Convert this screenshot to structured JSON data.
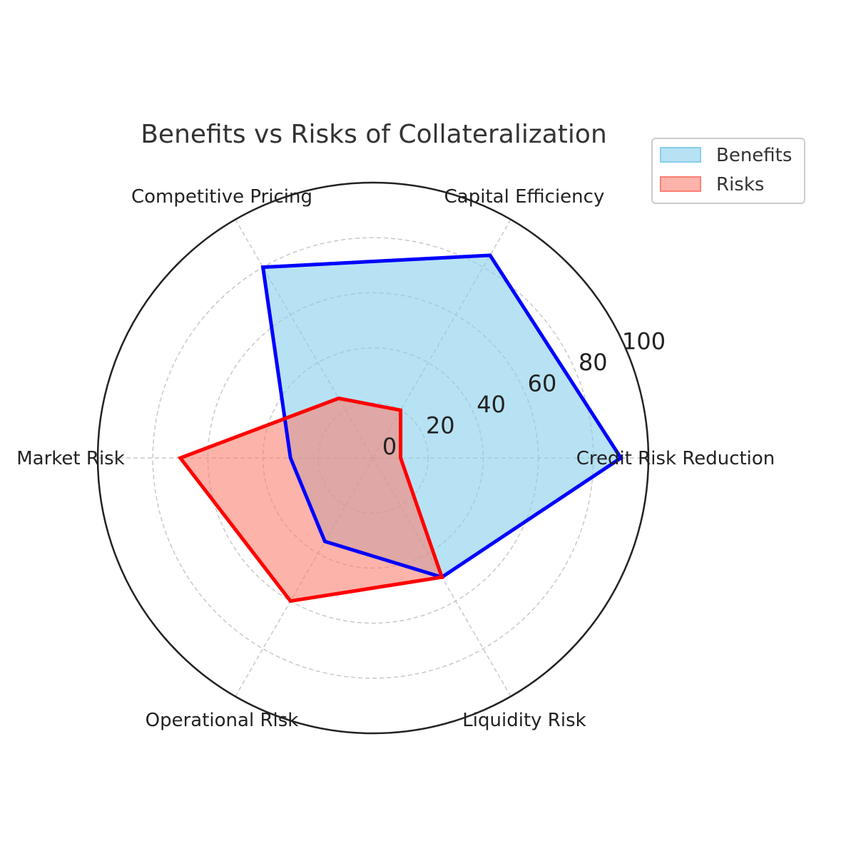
{
  "chart_data": {
    "type": "radar",
    "title": "Benefits vs Risks of Collateralization",
    "categories": [
      "Credit Risk Reduction",
      "Capital Efficiency",
      "Competitive Pricing",
      "Market Risk",
      "Operational Risk",
      "Liquidity Risk"
    ],
    "rlim": [
      0,
      100
    ],
    "rticks": [
      0,
      20,
      40,
      60,
      80,
      100
    ],
    "grid": true,
    "legend_position": "top-right",
    "series": [
      {
        "name": "Benefits",
        "values": [
          90,
          85,
          80,
          30,
          35,
          50
        ],
        "line_color": "#0000ff",
        "fill_color": "#87ceeb"
      },
      {
        "name": "Risks",
        "values": [
          10,
          20,
          25,
          70,
          60,
          50
        ],
        "line_color": "#ff0000",
        "fill_color": "#fa8072"
      }
    ]
  }
}
